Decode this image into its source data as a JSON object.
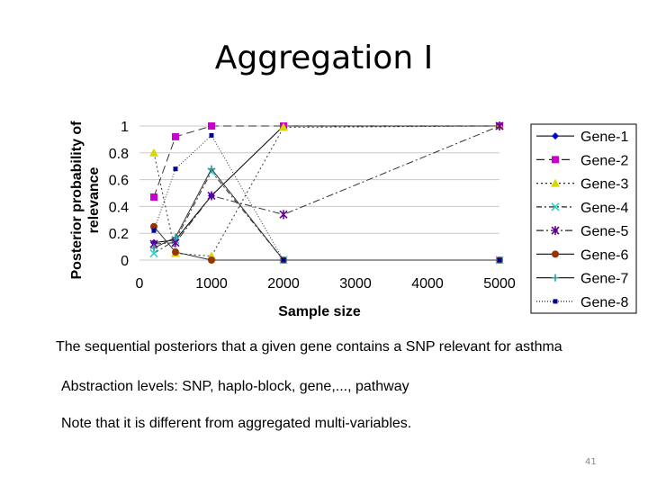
{
  "slide": {
    "title": "Aggregation I",
    "captions": [
      "The sequential posteriors that a given gene contains a SNP relevant for asthma",
      "Abstraction levels: SNP, haplo-block, gene,..., pathway",
      "Note that it is different from aggregated multi-variables."
    ],
    "page_number": "41"
  },
  "chart_data": {
    "type": "line",
    "title": "",
    "xlabel": "Sample size",
    "ylabel": "Posterior probability of relevance",
    "xlim": [
      0,
      5000
    ],
    "ylim": [
      0,
      1
    ],
    "xticks": [
      0,
      1000,
      2000,
      3000,
      4000,
      5000
    ],
    "yticks": [
      0,
      0.2,
      0.4,
      0.6,
      0.8,
      1
    ],
    "grid": true,
    "legend_position": "right",
    "series": [
      {
        "name": "Gene-1",
        "color": "#0000cc",
        "dash": "",
        "marker": "diamond",
        "x": [
          200,
          500,
          1000,
          2000,
          5000
        ],
        "y": [
          0.13,
          0.15,
          0.48,
          1.0,
          1.0
        ]
      },
      {
        "name": "Gene-2",
        "color": "#cc00cc",
        "dash": "9,5",
        "marker": "square",
        "x": [
          200,
          500,
          1000,
          2000,
          5000
        ],
        "y": [
          0.47,
          0.92,
          1.0,
          1.0,
          1.0
        ]
      },
      {
        "name": "Gene-3",
        "color": "#d8d800",
        "dash": "2,3",
        "marker": "triangle",
        "x": [
          200,
          500,
          1000,
          2000,
          5000
        ],
        "y": [
          0.8,
          0.05,
          0.03,
          0.99,
          1.0
        ]
      },
      {
        "name": "Gene-4",
        "color": "#33cccc",
        "dash": "6,3,2,3",
        "marker": "x",
        "x": [
          200,
          500,
          1000,
          2000,
          5000
        ],
        "y": [
          0.05,
          0.15,
          0.66,
          0.0,
          0.0
        ]
      },
      {
        "name": "Gene-5",
        "color": "#660099",
        "dash": "8,3,2,3",
        "marker": "star",
        "x": [
          200,
          500,
          1000,
          2000,
          5000
        ],
        "y": [
          0.12,
          0.13,
          0.48,
          0.34,
          1.0
        ]
      },
      {
        "name": "Gene-6",
        "color": "#993300",
        "dash": "",
        "marker": "circle",
        "x": [
          200,
          500,
          1000,
          2000,
          5000
        ],
        "y": [
          0.25,
          0.06,
          0.0,
          0.0,
          0.0
        ]
      },
      {
        "name": "Gene-7",
        "color": "#339999",
        "dash": "",
        "marker": "plus",
        "x": [
          200,
          500,
          1000,
          2000,
          5000
        ],
        "y": [
          0.09,
          0.17,
          0.68,
          0.0,
          0.0
        ]
      },
      {
        "name": "Gene-8",
        "color": "#000099",
        "dash": "1,2",
        "marker": "smallsquare",
        "x": [
          200,
          500,
          1000,
          2000,
          5000
        ],
        "y": [
          0.22,
          0.68,
          0.93,
          0.0,
          0.0
        ]
      }
    ]
  }
}
